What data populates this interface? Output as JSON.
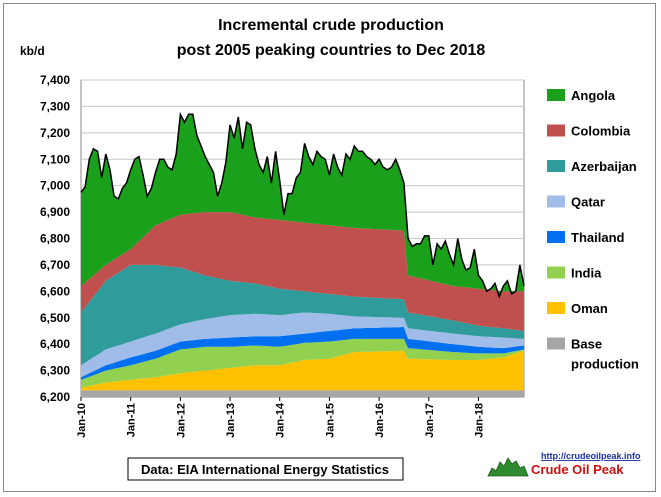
{
  "chart_data": {
    "type": "area",
    "stacked": true,
    "title": [
      "Incremental crude  production",
      "post 2005 peaking countries to Dec 2018"
    ],
    "ylabel": "kb/d",
    "ylim": [
      6200,
      7400
    ],
    "yticks": [
      "6,200",
      "6,300",
      "6,400",
      "6,500",
      "6,600",
      "6,700",
      "6,800",
      "6,900",
      "7,000",
      "7,100",
      "7,200",
      "7,300",
      "7,400"
    ],
    "xlabels": [
      "Jan-10",
      "Jan-11",
      "Jan-12",
      "Jan-13",
      "Jan-14",
      "Jan-15",
      "Jan-16",
      "Jan-17",
      "Jan-18"
    ],
    "x_start": "Jan-10",
    "x_end": "Dec-18",
    "grid": true,
    "legend_position": "right",
    "series": [
      {
        "name": "Base production",
        "color": "#a6a6a6",
        "anchors": [
          [
            0,
            6225
          ],
          [
            24,
            6225
          ],
          [
            48,
            6225
          ],
          [
            72,
            6225
          ],
          [
            84,
            6225
          ],
          [
            107,
            6225
          ]
        ]
      },
      {
        "name": "Oman",
        "color": "#ffc000",
        "anchors": [
          [
            0,
            6235
          ],
          [
            6,
            6255
          ],
          [
            12,
            6265
          ],
          [
            18,
            6275
          ],
          [
            24,
            6290
          ],
          [
            30,
            6300
          ],
          [
            36,
            6310
          ],
          [
            42,
            6320
          ],
          [
            48,
            6320
          ],
          [
            54,
            6340
          ],
          [
            60,
            6345
          ],
          [
            66,
            6370
          ],
          [
            78,
            6375
          ],
          [
            79,
            6345
          ],
          [
            90,
            6340
          ],
          [
            96,
            6340
          ],
          [
            102,
            6350
          ],
          [
            107,
            6375
          ]
        ]
      },
      {
        "name": "India",
        "color": "#92d050",
        "anchors": [
          [
            0,
            6265
          ],
          [
            6,
            6300
          ],
          [
            12,
            6320
          ],
          [
            18,
            6345
          ],
          [
            24,
            6380
          ],
          [
            30,
            6390
          ],
          [
            36,
            6390
          ],
          [
            42,
            6395
          ],
          [
            48,
            6390
          ],
          [
            54,
            6405
          ],
          [
            60,
            6410
          ],
          [
            66,
            6420
          ],
          [
            78,
            6420
          ],
          [
            79,
            6385
          ],
          [
            90,
            6370
          ],
          [
            96,
            6365
          ],
          [
            102,
            6365
          ],
          [
            107,
            6380
          ]
        ]
      },
      {
        "name": "Thailand",
        "color": "#0070f0",
        "anchors": [
          [
            0,
            6275
          ],
          [
            6,
            6320
          ],
          [
            12,
            6350
          ],
          [
            18,
            6375
          ],
          [
            24,
            6410
          ],
          [
            30,
            6420
          ],
          [
            36,
            6425
          ],
          [
            42,
            6430
          ],
          [
            48,
            6430
          ],
          [
            54,
            6440
          ],
          [
            60,
            6450
          ],
          [
            66,
            6460
          ],
          [
            78,
            6465
          ],
          [
            79,
            6420
          ],
          [
            90,
            6400
          ],
          [
            96,
            6390
          ],
          [
            102,
            6385
          ],
          [
            107,
            6395
          ]
        ]
      },
      {
        "name": "Qatar",
        "color": "#9fbde8",
        "anchors": [
          [
            0,
            6320
          ],
          [
            6,
            6380
          ],
          [
            12,
            6410
          ],
          [
            18,
            6440
          ],
          [
            24,
            6475
          ],
          [
            30,
            6495
          ],
          [
            36,
            6510
          ],
          [
            42,
            6515
          ],
          [
            48,
            6510
          ],
          [
            54,
            6520
          ],
          [
            60,
            6515
          ],
          [
            66,
            6505
          ],
          [
            78,
            6500
          ],
          [
            79,
            6460
          ],
          [
            90,
            6440
          ],
          [
            96,
            6430
          ],
          [
            102,
            6425
          ],
          [
            107,
            6420
          ]
        ]
      },
      {
        "name": "Azerbaijan",
        "color": "#2f9b9b",
        "anchors": [
          [
            0,
            6520
          ],
          [
            6,
            6640
          ],
          [
            12,
            6700
          ],
          [
            18,
            6700
          ],
          [
            24,
            6690
          ],
          [
            30,
            6660
          ],
          [
            36,
            6640
          ],
          [
            42,
            6630
          ],
          [
            48,
            6610
          ],
          [
            54,
            6600
          ],
          [
            60,
            6590
          ],
          [
            66,
            6580
          ],
          [
            78,
            6570
          ],
          [
            79,
            6520
          ],
          [
            90,
            6490
          ],
          [
            96,
            6470
          ],
          [
            102,
            6460
          ],
          [
            107,
            6450
          ]
        ]
      },
      {
        "name": "Colombia",
        "color": "#c0504d",
        "anchors": [
          [
            0,
            6620
          ],
          [
            6,
            6700
          ],
          [
            12,
            6760
          ],
          [
            18,
            6850
          ],
          [
            24,
            6890
          ],
          [
            30,
            6900
          ],
          [
            36,
            6900
          ],
          [
            42,
            6880
          ],
          [
            48,
            6870
          ],
          [
            54,
            6860
          ],
          [
            60,
            6850
          ],
          [
            66,
            6840
          ],
          [
            78,
            6830
          ],
          [
            79,
            6660
          ],
          [
            90,
            6620
          ],
          [
            96,
            6610
          ],
          [
            102,
            6600
          ],
          [
            107,
            6600
          ]
        ]
      },
      {
        "name": "Angola",
        "color": "#1aa01a",
        "anchors": [
          [
            0,
            6975
          ],
          [
            1,
            6995
          ],
          [
            2,
            7100
          ],
          [
            3,
            7140
          ],
          [
            4,
            7130
          ],
          [
            5,
            7030
          ],
          [
            6,
            7120
          ],
          [
            7,
            7060
          ],
          [
            8,
            6960
          ],
          [
            9,
            6950
          ],
          [
            10,
            6990
          ],
          [
            11,
            7010
          ],
          [
            12,
            7060
          ],
          [
            13,
            7100
          ],
          [
            14,
            7110
          ],
          [
            15,
            7040
          ],
          [
            16,
            6960
          ],
          [
            17,
            6990
          ],
          [
            18,
            7050
          ],
          [
            19,
            7100
          ],
          [
            20,
            7100
          ],
          [
            21,
            7070
          ],
          [
            22,
            7060
          ],
          [
            23,
            7120
          ],
          [
            24,
            7270
          ],
          [
            25,
            7240
          ],
          [
            26,
            7270
          ],
          [
            27,
            7270
          ],
          [
            28,
            7190
          ],
          [
            29,
            7150
          ],
          [
            30,
            7110
          ],
          [
            31,
            7080
          ],
          [
            32,
            7050
          ],
          [
            33,
            6960
          ],
          [
            34,
            7010
          ],
          [
            35,
            7090
          ],
          [
            36,
            7230
          ],
          [
            37,
            7180
          ],
          [
            38,
            7260
          ],
          [
            39,
            7140
          ],
          [
            40,
            7240
          ],
          [
            41,
            7230
          ],
          [
            42,
            7140
          ],
          [
            43,
            7080
          ],
          [
            44,
            7050
          ],
          [
            45,
            7110
          ],
          [
            46,
            7010
          ],
          [
            47,
            7130
          ],
          [
            48,
            7020
          ],
          [
            49,
            6890
          ],
          [
            50,
            6970
          ],
          [
            51,
            6970
          ],
          [
            52,
            7030
          ],
          [
            53,
            7050
          ],
          [
            54,
            7160
          ],
          [
            55,
            7110
          ],
          [
            56,
            7080
          ],
          [
            57,
            7130
          ],
          [
            58,
            7110
          ],
          [
            59,
            7100
          ],
          [
            60,
            7040
          ],
          [
            61,
            7120
          ],
          [
            62,
            7070
          ],
          [
            63,
            7040
          ],
          [
            64,
            7120
          ],
          [
            65,
            7100
          ],
          [
            66,
            7150
          ],
          [
            67,
            7130
          ],
          [
            68,
            7130
          ],
          [
            69,
            7110
          ],
          [
            70,
            7100
          ],
          [
            71,
            7080
          ],
          [
            72,
            7100
          ],
          [
            73,
            7070
          ],
          [
            74,
            7060
          ],
          [
            75,
            7070
          ],
          [
            76,
            7100
          ],
          [
            77,
            7060
          ],
          [
            78,
            7010
          ],
          [
            79,
            6800
          ],
          [
            80,
            6770
          ],
          [
            81,
            6780
          ],
          [
            82,
            6780
          ],
          [
            83,
            6810
          ],
          [
            84,
            6810
          ],
          [
            85,
            6700
          ],
          [
            86,
            6780
          ],
          [
            87,
            6760
          ],
          [
            88,
            6790
          ],
          [
            89,
            6740
          ],
          [
            90,
            6700
          ],
          [
            91,
            6800
          ],
          [
            92,
            6720
          ],
          [
            93,
            6680
          ],
          [
            94,
            6690
          ],
          [
            95,
            6760
          ],
          [
            96,
            6660
          ],
          [
            97,
            6640
          ],
          [
            98,
            6600
          ],
          [
            99,
            6610
          ],
          [
            100,
            6630
          ],
          [
            101,
            6580
          ],
          [
            102,
            6620
          ],
          [
            103,
            6640
          ],
          [
            104,
            6590
          ],
          [
            105,
            6600
          ],
          [
            106,
            6700
          ],
          [
            107,
            6620
          ]
        ]
      }
    ]
  },
  "footnote": "Data: EIA International Energy Statistics",
  "logo": {
    "url": "http://crudeoilpeak.info",
    "name": "Crude Oil Peak"
  }
}
